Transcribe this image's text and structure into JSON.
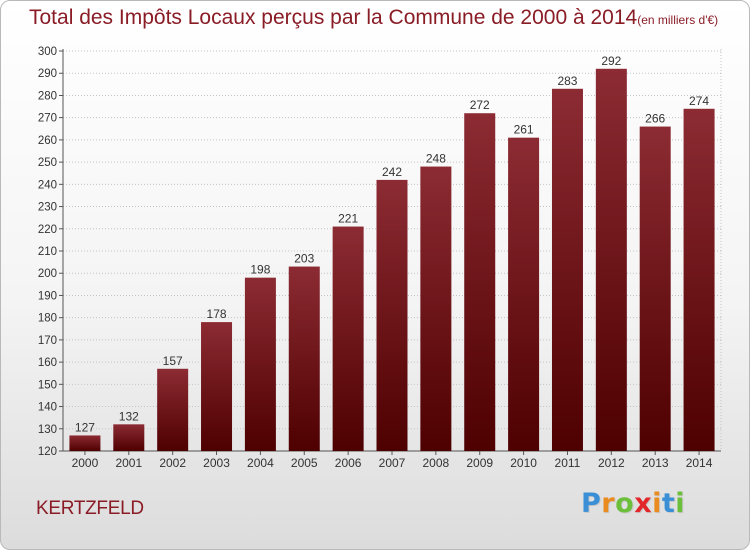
{
  "chart_data": {
    "type": "bar",
    "title": "Total des Impôts Locaux perçus par la Commune de 2000 à 2014",
    "unit_label": "(en milliers d'€)",
    "categories": [
      "2000",
      "2001",
      "2002",
      "2003",
      "2004",
      "2005",
      "2006",
      "2007",
      "2008",
      "2009",
      "2010",
      "2011",
      "2012",
      "2013",
      "2014"
    ],
    "values": [
      127,
      132,
      157,
      178,
      198,
      203,
      221,
      242,
      248,
      272,
      261,
      283,
      292,
      266,
      274
    ],
    "ylim": [
      120,
      300
    ],
    "ytick_step": 10,
    "grid": true,
    "bar_color": "#6b0f18"
  },
  "commune": "KERTZFELD",
  "logo": {
    "letters": [
      "P",
      "r",
      "o",
      "x",
      "i",
      "t",
      "i"
    ],
    "colors": [
      "#3b8fd6",
      "#e98b1e",
      "#6cbf3a",
      "#e2272b",
      "#e98b1e",
      "#3b8fd6",
      "#6cbf3a"
    ]
  }
}
